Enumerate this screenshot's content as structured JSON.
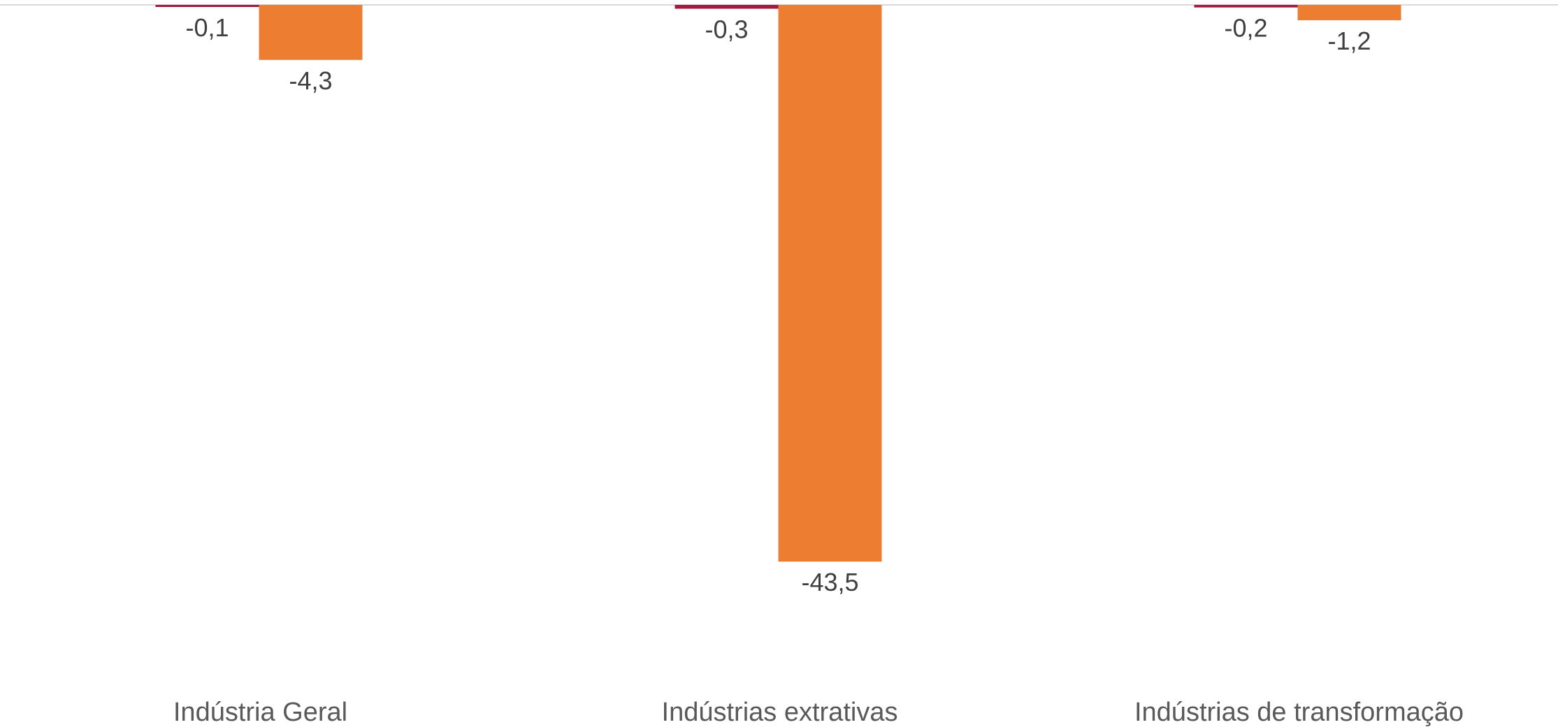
{
  "chart_data": {
    "type": "bar",
    "title": "",
    "xlabel": "",
    "ylabel": "",
    "categories": [
      "Indústria Geral",
      "Indústrias extrativas",
      "Indústrias de transformação"
    ],
    "series": [
      {
        "color": "#a6183f",
        "values": [
          -0.1,
          -0.3,
          -0.2
        ],
        "labels": [
          "-0,1",
          "-0,3",
          "-0,2"
        ]
      },
      {
        "color": "#ed7d31",
        "values": [
          -4.3,
          -43.5,
          -1.2
        ],
        "labels": [
          "-4,3",
          "-43,5",
          "-1,2"
        ]
      }
    ],
    "ylim": [
      -46,
      0
    ],
    "grid": false,
    "legend": "none"
  },
  "colors": {
    "baseline": "#d9d9d9",
    "category_text": "#595959",
    "value_text": "#404040"
  }
}
